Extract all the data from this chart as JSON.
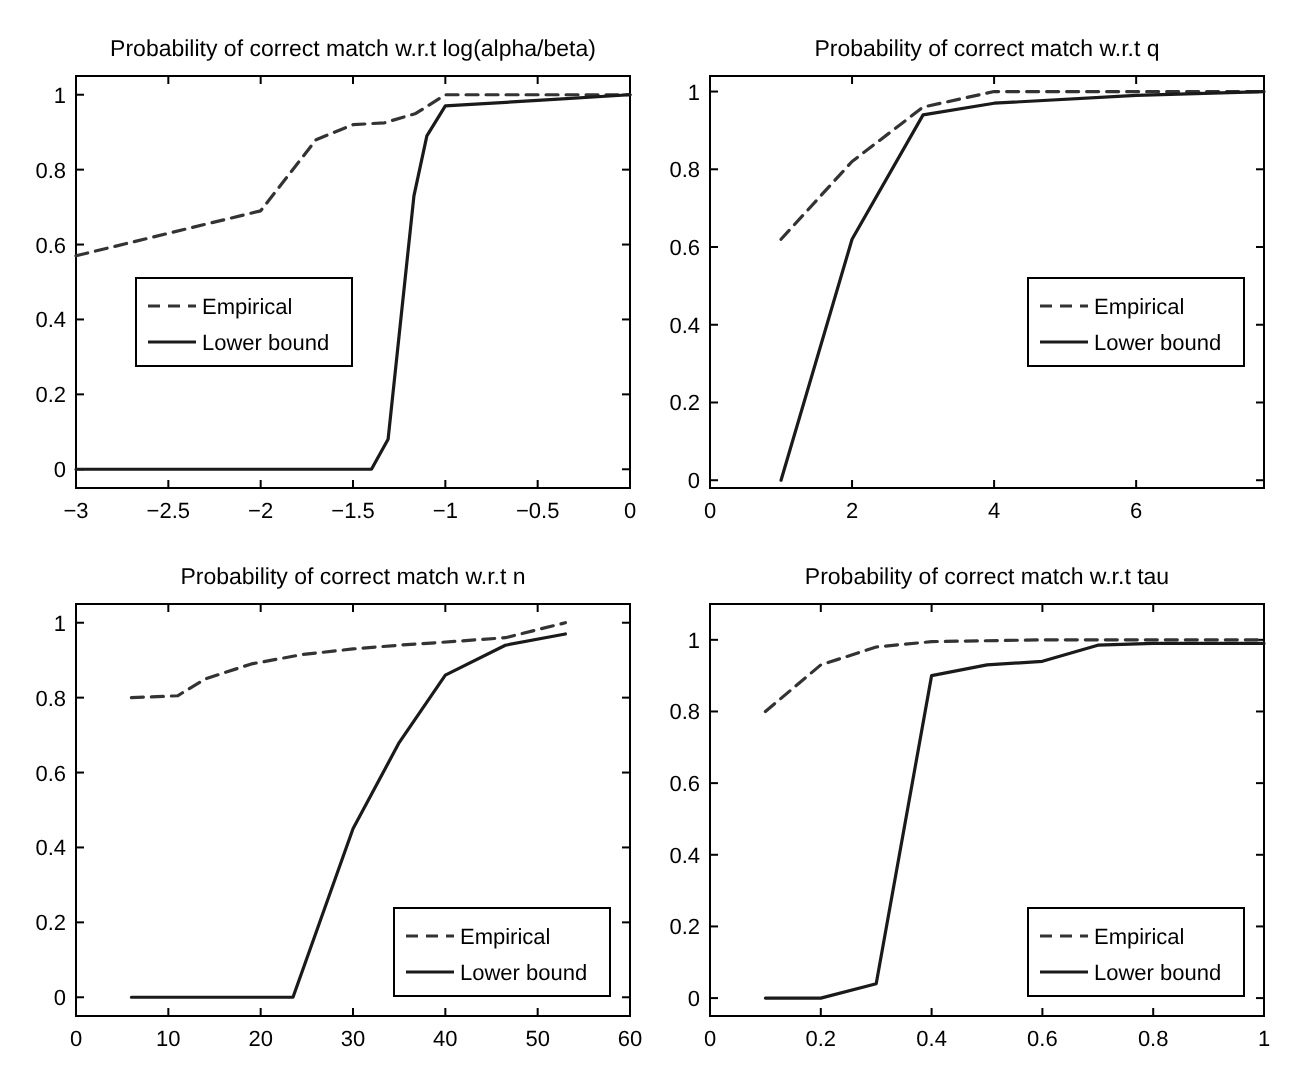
{
  "chart_data": [
    {
      "type": "line",
      "title": "Probability of correct match w.r.t log(alpha/beta)",
      "xlim": [
        -3,
        0
      ],
      "xticks": [
        -3,
        -2.5,
        -2,
        -1.5,
        -1,
        -0.5,
        0
      ],
      "ylim": [
        -0.05,
        1.05
      ],
      "yticks": [
        0,
        0.2,
        0.4,
        0.6,
        0.8,
        1
      ],
      "legend": "center left",
      "grid": false,
      "series": [
        {
          "name": "Empirical",
          "color": "#333333",
          "line_style": "dashed",
          "x": [
            -3,
            -2,
            -1.7,
            -1.5,
            -1.33,
            -1.16,
            -1,
            -0.5,
            0
          ],
          "values": [
            0.57,
            0.69,
            0.88,
            0.92,
            0.925,
            0.95,
            1.0,
            1.0,
            1.0
          ]
        },
        {
          "name": "Lower bound",
          "color": "#1a1a1a",
          "line_style": "solid",
          "x": [
            -3,
            -1.4,
            -1.31,
            -1.17,
            -1.1,
            -1,
            -0.5,
            0
          ],
          "values": [
            0,
            0,
            0.08,
            0.73,
            0.89,
            0.97,
            0.985,
            1.0
          ]
        }
      ]
    },
    {
      "type": "line",
      "title": "Probability of correct match w.r.t q",
      "xlim": [
        0,
        7.8
      ],
      "xticks": [
        0,
        2,
        4,
        6
      ],
      "ylim": [
        -0.02,
        1.04
      ],
      "yticks": [
        0,
        0.2,
        0.4,
        0.6,
        0.8,
        1
      ],
      "legend": "center right",
      "grid": false,
      "series": [
        {
          "name": "Empirical",
          "color": "#333333",
          "line_style": "dashed",
          "x": [
            1,
            2,
            3,
            4,
            6,
            7.8
          ],
          "values": [
            0.62,
            0.82,
            0.96,
            1.0,
            1.0,
            1.0
          ]
        },
        {
          "name": "Lower bound",
          "color": "#1a1a1a",
          "line_style": "solid",
          "x": [
            1,
            2,
            3,
            4,
            6,
            7.8
          ],
          "values": [
            0,
            0.62,
            0.94,
            0.97,
            0.99,
            1.0
          ]
        }
      ]
    },
    {
      "type": "line",
      "title": "Probability of correct match w.r.t n",
      "xlim": [
        0,
        60
      ],
      "xticks": [
        0,
        10,
        20,
        30,
        40,
        50,
        60
      ],
      "ylim": [
        -0.05,
        1.05
      ],
      "yticks": [
        0,
        0.2,
        0.4,
        0.6,
        0.8,
        1
      ],
      "legend": "bottom right",
      "grid": false,
      "series": [
        {
          "name": "Empirical",
          "color": "#333333",
          "line_style": "dashed",
          "x": [
            6,
            11,
            14,
            19,
            24.5,
            30,
            35,
            41,
            46.5,
            53
          ],
          "values": [
            0.8,
            0.805,
            0.85,
            0.89,
            0.915,
            0.93,
            0.94,
            0.95,
            0.96,
            1.0
          ]
        },
        {
          "name": "Lower bound",
          "color": "#1a1a1a",
          "line_style": "solid",
          "x": [
            6,
            23.5,
            30,
            35,
            40,
            46.5,
            53
          ],
          "values": [
            0,
            0,
            0.45,
            0.68,
            0.86,
            0.94,
            0.97
          ]
        }
      ]
    },
    {
      "type": "line",
      "title": "Probability of correct match w.r.t tau",
      "xlim": [
        0,
        1
      ],
      "xticks": [
        0,
        0.2,
        0.4,
        0.6,
        0.8,
        1
      ],
      "ylim": [
        -0.05,
        1.1
      ],
      "yticks": [
        0,
        0.2,
        0.4,
        0.6,
        0.8,
        1
      ],
      "legend": "bottom right",
      "grid": false,
      "series": [
        {
          "name": "Empirical",
          "color": "#333333",
          "line_style": "dashed",
          "x": [
            0.1,
            0.2,
            0.3,
            0.4,
            0.6,
            0.8,
            1
          ],
          "values": [
            0.8,
            0.93,
            0.98,
            0.995,
            1.0,
            1.0,
            1.0
          ]
        },
        {
          "name": "Lower bound",
          "color": "#1a1a1a",
          "line_style": "solid",
          "x": [
            0.1,
            0.2,
            0.3,
            0.4,
            0.5,
            0.6,
            0.7,
            0.8,
            1
          ],
          "values": [
            0,
            0,
            0.04,
            0.9,
            0.93,
            0.94,
            0.985,
            0.99,
            0.99
          ]
        }
      ]
    }
  ]
}
